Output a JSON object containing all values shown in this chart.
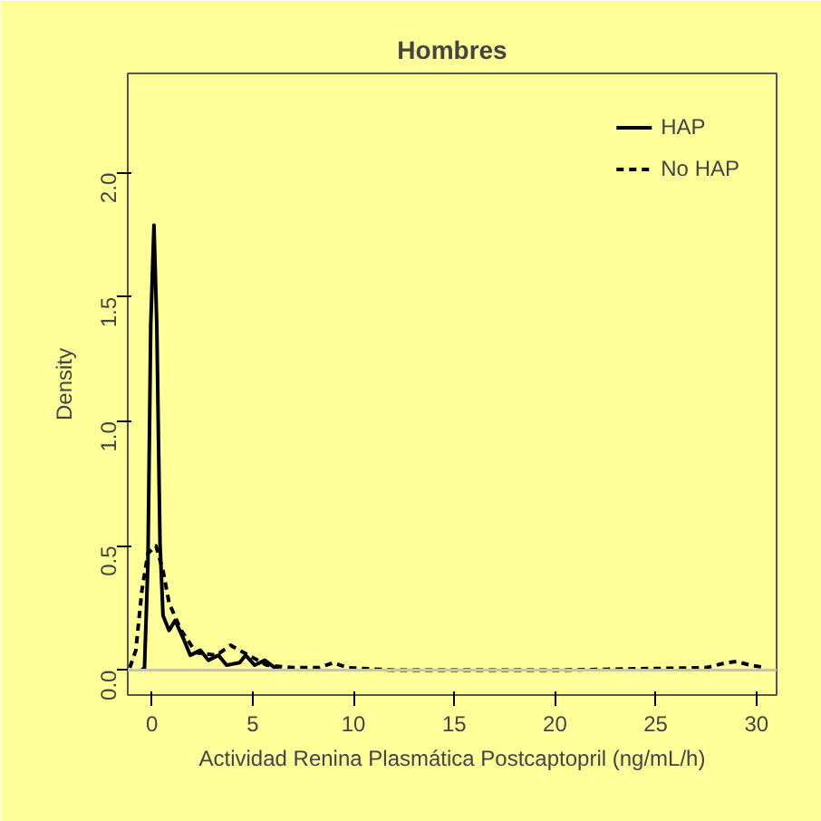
{
  "chart_data": {
    "type": "line",
    "title": "Hombres",
    "xlabel": "Actividad Renina Plasmática Postcaptopril (ng/mL/h)",
    "ylabel": "Density",
    "xlim": [
      -1.2,
      31
    ],
    "ylim": [
      -0.1,
      2.4
    ],
    "xticks": [
      0,
      5,
      10,
      15,
      20,
      25,
      30
    ],
    "yticks": [
      {
        "value": 0,
        "label": "0.0"
      },
      {
        "value": 0.5,
        "label": "0.5"
      },
      {
        "value": 1,
        "label": "1.0"
      },
      {
        "value": 1.5,
        "label": "1.5"
      },
      {
        "value": 2,
        "label": "2.0"
      }
    ],
    "grid": false,
    "legend": "top right",
    "marker": "none",
    "ref_lines": [
      {
        "axis": "y",
        "value": 0,
        "label": null,
        "color": "#c8c8a0"
      }
    ],
    "series": [
      {
        "name": "HAP",
        "color": "#000000",
        "line_style": "solid",
        "x": [
          -0.5,
          -0.37,
          -0.2,
          -0.06,
          0.1,
          0.24,
          0.4,
          0.55,
          0.85,
          1.15,
          1.6,
          1.9,
          2.4,
          2.8,
          3.3,
          3.7,
          4.35,
          4.65,
          5.1,
          5.6,
          6.1,
          6.3
        ],
        "values": [
          0,
          0.01,
          0.43,
          1.39,
          1.79,
          1.39,
          0.51,
          0.22,
          0.16,
          0.2,
          0.12,
          0.06,
          0.08,
          0.04,
          0.06,
          0.02,
          0.03,
          0.06,
          0.02,
          0.04,
          0.01,
          0
        ]
      },
      {
        "name": "No HAP",
        "color": "#000000",
        "line_style": "dashed",
        "x": [
          -1.1,
          -0.8,
          -0.5,
          -0.2,
          0.2,
          0.55,
          0.85,
          1.45,
          2.2,
          3.2,
          3.9,
          4.8,
          5.7,
          7,
          8.3,
          9,
          9.7,
          12,
          20,
          27.5,
          28.5,
          29,
          29.7,
          30.5
        ],
        "values": [
          0.01,
          0.08,
          0.32,
          0.47,
          0.5,
          0.4,
          0.27,
          0.16,
          0.07,
          0.06,
          0.1,
          0.06,
          0.02,
          0.01,
          0.01,
          0.03,
          0.01,
          0,
          0,
          0.01,
          0.03,
          0.035,
          0.02,
          0.01
        ]
      }
    ]
  }
}
